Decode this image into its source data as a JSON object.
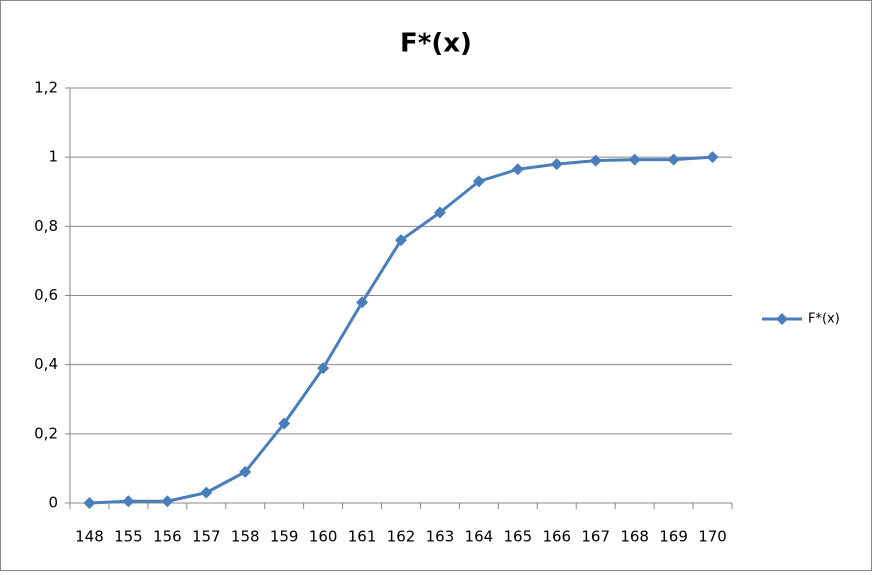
{
  "chart_data": {
    "type": "line",
    "title": "F*(x)",
    "categories": [
      "148",
      "155",
      "156",
      "157",
      "158",
      "159",
      "160",
      "161",
      "162",
      "163",
      "164",
      "165",
      "166",
      "167",
      "168",
      "169",
      "170"
    ],
    "series": [
      {
        "name": "F*(x)",
        "color": "#4a7ebb",
        "values": [
          0,
          0.005,
          0.005,
          0.03,
          0.09,
          0.23,
          0.39,
          0.58,
          0.76,
          0.84,
          0.93,
          0.965,
          0.98,
          0.99,
          0.993,
          0.993,
          1.0
        ]
      }
    ],
    "ylim": [
      0,
      1.2
    ],
    "yticks": [
      0,
      {
        "value": 0.2,
        "label": "0,2"
      },
      {
        "value": 0.4,
        "label": "0,4"
      },
      {
        "value": 0.6,
        "label": "0,6"
      },
      {
        "value": 0.8,
        "label": "0,8"
      },
      1,
      {
        "value": 1.2,
        "label": "1,2"
      }
    ],
    "grid": true,
    "legend": "right"
  }
}
